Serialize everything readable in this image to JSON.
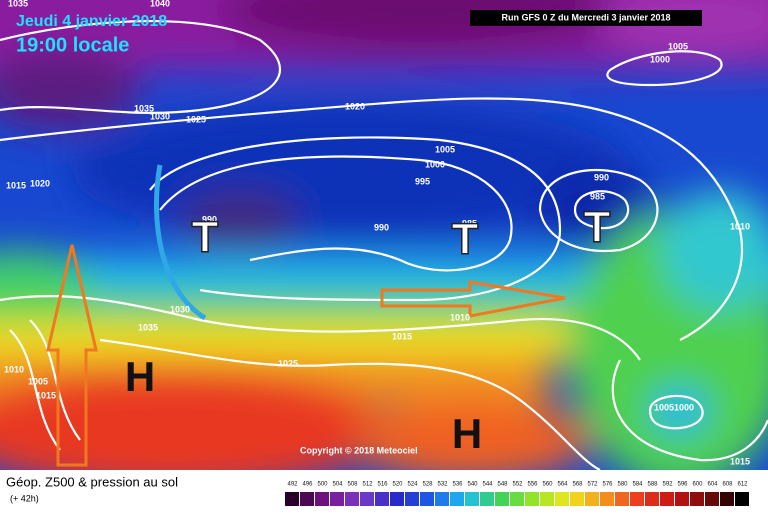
{
  "header": {
    "date": "Jeudi 4 janvier 2018",
    "time": "19:00 locale",
    "run": "Run GFS 0 Z du Mercredi 3 janvier 2018"
  },
  "isobar_labels": [
    1035,
    1040,
    1005,
    1000,
    1035,
    1030,
    1025,
    1020,
    1005,
    1000,
    995,
    990,
    985,
    990,
    985,
    990,
    1015,
    1020,
    1010,
    1030,
    1035,
    1010,
    1015,
    1025,
    1005,
    1000,
    1015,
    1010,
    1005,
    1015
  ],
  "lows": [
    "T",
    "T",
    "T"
  ],
  "highs": [
    "H",
    "H"
  ],
  "copyright": "Copyright © 2018 Meteociel",
  "footer": {
    "title": "Géop. Z500 & pression au sol",
    "lead": "(+ 42h)"
  },
  "scale": [
    492,
    496,
    500,
    504,
    508,
    512,
    516,
    520,
    524,
    528,
    532,
    536,
    540,
    544,
    548,
    552,
    556,
    560,
    564,
    568,
    572,
    576,
    580,
    584,
    588,
    592,
    596,
    600,
    604,
    608,
    612
  ]
}
